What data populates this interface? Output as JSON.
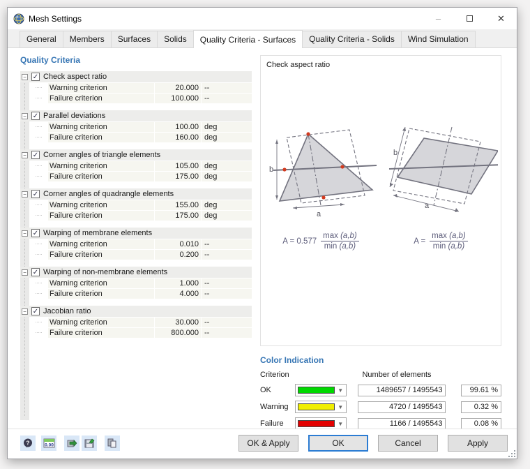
{
  "window": {
    "title": "Mesh Settings",
    "controls": {
      "minimize": "–",
      "close": "✕"
    }
  },
  "tabs": [
    {
      "label": "General",
      "active": false
    },
    {
      "label": "Members",
      "active": false
    },
    {
      "label": "Surfaces",
      "active": false
    },
    {
      "label": "Solids",
      "active": false
    },
    {
      "label": "Quality Criteria - Surfaces",
      "active": true
    },
    {
      "label": "Quality Criteria - Solids",
      "active": false
    },
    {
      "label": "Wind Simulation",
      "active": false
    }
  ],
  "left_panel": {
    "heading": "Quality Criteria",
    "groups": [
      {
        "label": "Check aspect ratio",
        "checked": true,
        "rows": [
          {
            "label": "Warning criterion",
            "value": "20.000",
            "unit": "--"
          },
          {
            "label": "Failure criterion",
            "value": "100.000",
            "unit": "--"
          }
        ]
      },
      {
        "label": "Parallel deviations",
        "checked": true,
        "rows": [
          {
            "label": "Warning criterion",
            "value": "100.00",
            "unit": "deg"
          },
          {
            "label": "Failure criterion",
            "value": "160.00",
            "unit": "deg"
          }
        ]
      },
      {
        "label": "Corner angles of triangle elements",
        "checked": true,
        "rows": [
          {
            "label": "Warning criterion",
            "value": "105.00",
            "unit": "deg"
          },
          {
            "label": "Failure criterion",
            "value": "175.00",
            "unit": "deg"
          }
        ]
      },
      {
        "label": "Corner angles of quadrangle elements",
        "checked": true,
        "rows": [
          {
            "label": "Warning criterion",
            "value": "155.00",
            "unit": "deg"
          },
          {
            "label": "Failure criterion",
            "value": "175.00",
            "unit": "deg"
          }
        ]
      },
      {
        "label": "Warping of membrane elements",
        "checked": true,
        "rows": [
          {
            "label": "Warning criterion",
            "value": "0.010",
            "unit": "--"
          },
          {
            "label": "Failure criterion",
            "value": "0.200",
            "unit": "--"
          }
        ]
      },
      {
        "label": "Warping of non-membrane elements",
        "checked": true,
        "rows": [
          {
            "label": "Warning criterion",
            "value": "1.000",
            "unit": "--"
          },
          {
            "label": "Failure criterion",
            "value": "4.000",
            "unit": "--"
          }
        ]
      },
      {
        "label": "Jacobian ratio",
        "checked": true,
        "rows": [
          {
            "label": "Warning criterion",
            "value": "30.000",
            "unit": "--"
          },
          {
            "label": "Failure criterion",
            "value": "800.000",
            "unit": "--"
          }
        ]
      }
    ]
  },
  "right_panel": {
    "diagram_title": "Check aspect ratio",
    "diagram_labels": {
      "a": "a",
      "b": "b"
    },
    "formulas": {
      "triangle": {
        "prefix": "A = 0.577",
        "num_fn": "max",
        "num_args": "(a,b)",
        "den_fn": "min",
        "den_args": "(a,b)"
      },
      "quad": {
        "prefix": "A =",
        "num_fn": "max",
        "num_args": "(a,b)",
        "den_fn": "min",
        "den_args": "(a,b)"
      }
    }
  },
  "color_indication": {
    "heading": "Color Indication",
    "col_criterion": "Criterion",
    "col_elements": "Number of elements",
    "rows": [
      {
        "label": "OK",
        "color": "#00d900",
        "count": "1489657 / 1495543",
        "percent": "99.61 %"
      },
      {
        "label": "Warning",
        "color": "#f0ee00",
        "count": "4720 / 1495543",
        "percent": "0.32 %"
      },
      {
        "label": "Failure",
        "color": "#e30000",
        "count": "1166 / 1495543",
        "percent": "0.08 %"
      }
    ]
  },
  "footer": {
    "icons": [
      "help",
      "decimal-format",
      "import-settings",
      "save-settings",
      "copy"
    ],
    "buttons": [
      {
        "label": "OK & Apply",
        "default": false
      },
      {
        "label": "OK",
        "default": true
      },
      {
        "label": "Cancel",
        "default": false
      },
      {
        "label": "Apply",
        "default": false
      }
    ]
  }
}
